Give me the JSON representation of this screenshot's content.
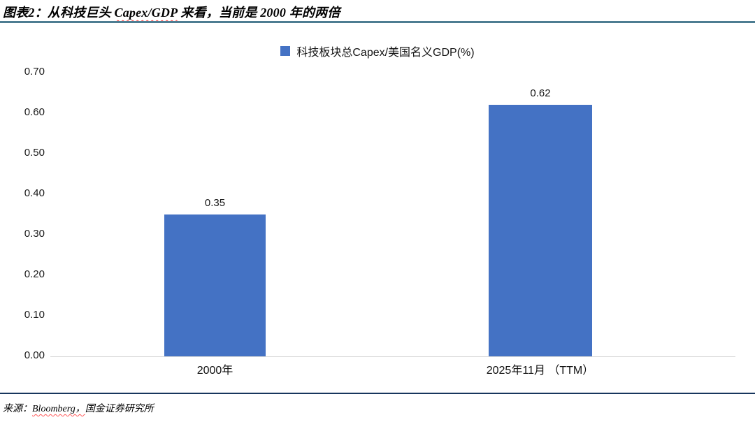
{
  "header": {
    "title_prefix": "图表2：从科技巨头 ",
    "title_highlight": "Capex/GDP",
    "title_suffix": " 来看，当前是 2000 年的两倍"
  },
  "legend": {
    "label": "科技板块总Capex/美国名义GDP(%)"
  },
  "chart_data": {
    "type": "bar",
    "title": "科技板块总Capex/美国名义GDP(%)",
    "categories": [
      "2000年",
      "2025年11月 （TTM）"
    ],
    "values": [
      0.35,
      0.62
    ],
    "value_labels": [
      "0.35",
      "0.62"
    ],
    "xlabel": "",
    "ylabel": "",
    "ylim": [
      0,
      0.7
    ],
    "ytick_labels": [
      "0.70",
      "0.60",
      "0.50",
      "0.40",
      "0.30",
      "0.20",
      "0.10",
      "0.00"
    ],
    "grid": false,
    "legend_position": "top",
    "bar_color": "#4472C4"
  },
  "footer": {
    "source_prefix": "来源：",
    "source_vendor": "Bloomberg，",
    "source_suffix": "国金证券研究所"
  },
  "colors": {
    "bar": "#4472C4",
    "title_rule": "#4d7d92",
    "footer_rule": "#17365d",
    "baseline": "#d8d8d8"
  }
}
